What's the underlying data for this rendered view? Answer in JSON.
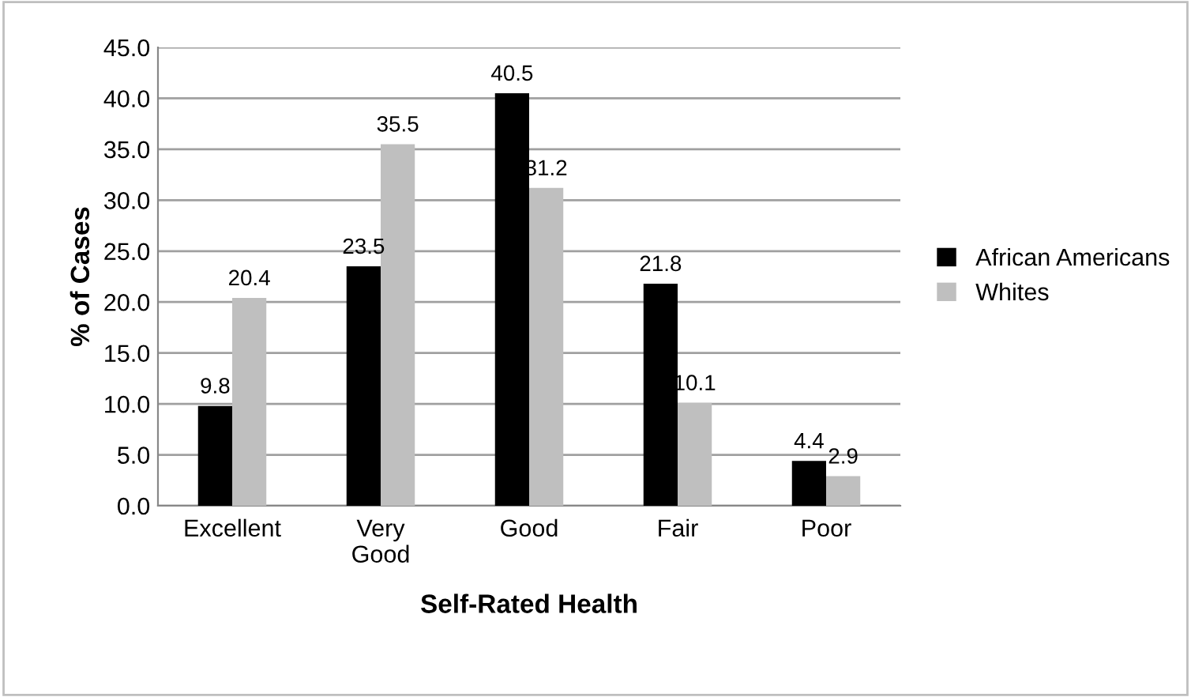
{
  "chart_data": {
    "type": "bar",
    "xlabel": "Self-Rated Health",
    "ylabel": "% of Cases",
    "categories": [
      "Excellent",
      "Very\nGood",
      "Good",
      "Fair",
      "Poor"
    ],
    "series": [
      {
        "name": "African Americans",
        "color": "#000000",
        "values": [
          9.8,
          23.5,
          40.5,
          21.8,
          4.4
        ]
      },
      {
        "name": "Whites",
        "color": "#bfbfbf",
        "values": [
          20.4,
          35.5,
          31.2,
          10.1,
          2.9
        ]
      }
    ],
    "ylim": [
      0,
      45
    ],
    "yticks": [
      {
        "value": 0,
        "label": "0.0"
      },
      {
        "value": 5,
        "label": "5.0"
      },
      {
        "value": 10,
        "label": "10.0"
      },
      {
        "value": 15,
        "label": "15.0"
      },
      {
        "value": 20,
        "label": "20.0"
      },
      {
        "value": 25,
        "label": "25.0"
      },
      {
        "value": 30,
        "label": "30.0"
      },
      {
        "value": 35,
        "label": "35.0"
      },
      {
        "value": 40,
        "label": "40.0"
      },
      {
        "value": 45,
        "label": "45.0"
      }
    ],
    "grid": "y",
    "legend": "right",
    "data_labels": true
  }
}
